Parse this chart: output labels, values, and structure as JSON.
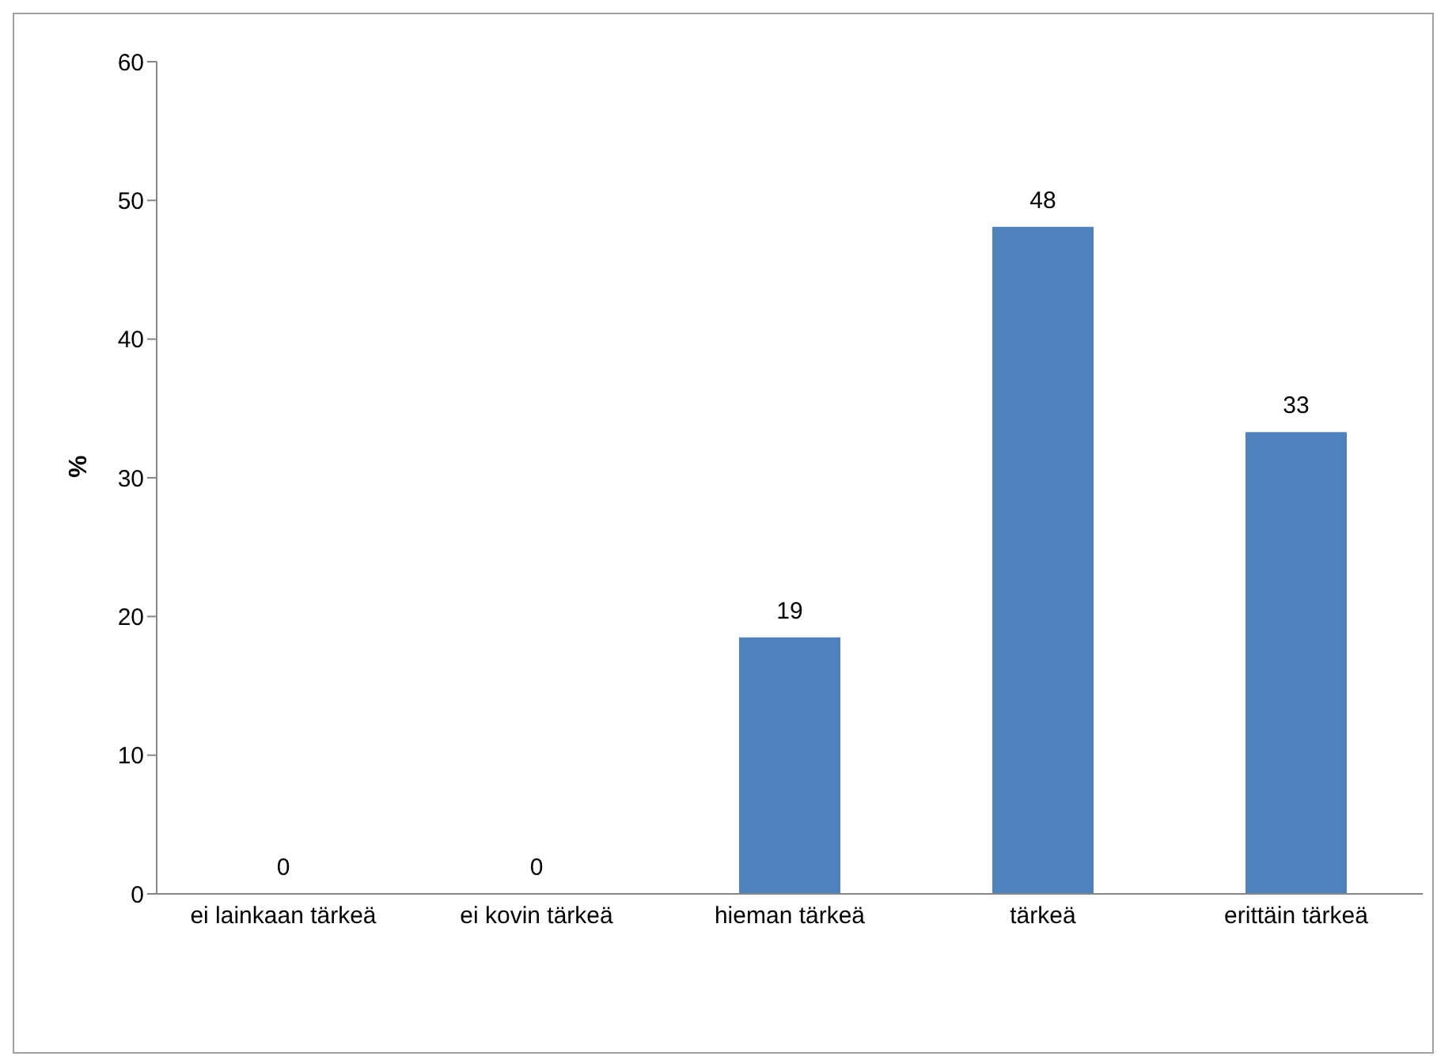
{
  "chart_data": {
    "type": "bar",
    "ylabel": "%",
    "categories": [
      "ei lainkaan tärkeä",
      "ei kovin tärkeä",
      "hieman tärkeä",
      "tärkeä",
      "erittäin tärkeä"
    ],
    "values": [
      0,
      0,
      18.5,
      48.1,
      33.3
    ],
    "value_labels": [
      "0",
      "0",
      "19",
      "48",
      "33"
    ],
    "color": "#4f81bd",
    "ylim": [
      0,
      60
    ],
    "yticks": [
      0,
      10,
      20,
      30,
      40,
      50,
      60
    ],
    "grid": false,
    "legend": false
  }
}
